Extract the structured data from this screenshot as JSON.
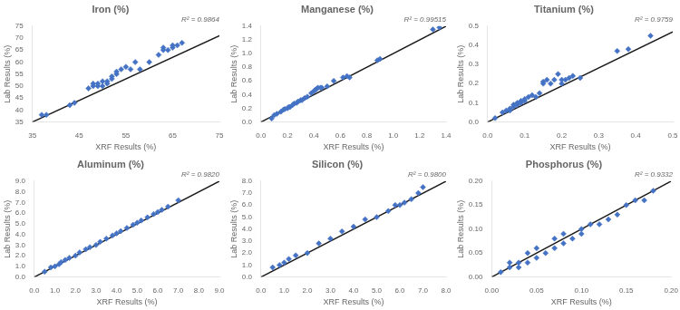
{
  "chart_data": [
    {
      "type": "scatter",
      "title": "Iron (%)",
      "annotation": "R² = 0.9864",
      "x_label": "XRF Results (%)",
      "y_label": "Lab Results (%)",
      "xlim": [
        35,
        75
      ],
      "ylim": [
        35,
        75
      ],
      "xticks": [
        35,
        45,
        55,
        65,
        75
      ],
      "yticks": [
        35,
        40,
        45,
        50,
        55,
        60,
        65,
        70,
        75
      ],
      "grid": false,
      "legend": false,
      "series": [
        {
          "type": "scatter",
          "color": "#4472C4",
          "marker": "diamond",
          "x": [
            37,
            38,
            43,
            44,
            47,
            48,
            48,
            49,
            49,
            50,
            50,
            51,
            51,
            52,
            52,
            53,
            53,
            54,
            55,
            56,
            57,
            58,
            60,
            62,
            63,
            63,
            64,
            65,
            65,
            66,
            67
          ],
          "values": [
            38,
            38,
            42,
            43,
            49,
            50,
            51,
            50,
            51,
            52,
            50,
            52,
            51,
            53,
            54,
            55,
            56,
            57,
            58,
            57,
            60,
            57,
            60,
            63,
            65,
            66,
            65,
            66,
            67,
            67,
            68
          ]
        },
        {
          "type": "line",
          "color": "#1a1a1a",
          "line_style": "solid",
          "x": [
            35,
            75
          ],
          "values": [
            35,
            71
          ]
        }
      ]
    },
    {
      "type": "scatter",
      "title": "Manganese (%)",
      "annotation": "R² = 0.99515",
      "x_label": "XRF Results (%)",
      "y_label": "Lab Results (%)",
      "xlim": [
        0.0,
        1.4
      ],
      "ylim": [
        0.0,
        1.4
      ],
      "xticks": [
        {
          "value": 0,
          "label": "0.0"
        },
        0.2,
        0.4,
        0.6,
        0.8,
        {
          "value": 1,
          "label": "1.0"
        },
        1.2,
        1.4
      ],
      "yticks": [
        {
          "value": 0,
          "label": "0.0"
        },
        0.2,
        0.4,
        0.6,
        0.8,
        {
          "value": 1,
          "label": "1.0"
        },
        1.2,
        1.4
      ],
      "grid": false,
      "legend": false,
      "series": [
        {
          "type": "scatter",
          "color": "#4472C4",
          "marker": "diamond",
          "x": [
            0.08,
            0.1,
            0.12,
            0.15,
            0.17,
            0.18,
            0.2,
            0.21,
            0.22,
            0.24,
            0.25,
            0.27,
            0.28,
            0.3,
            0.31,
            0.33,
            0.35,
            0.38,
            0.4,
            0.41,
            0.42,
            0.43,
            0.45,
            0.46,
            0.5,
            0.55,
            0.62,
            0.65,
            0.67,
            0.88,
            0.9,
            1.3,
            1.35
          ],
          "values": [
            0.05,
            0.1,
            0.12,
            0.15,
            0.18,
            0.19,
            0.2,
            0.22,
            0.22,
            0.25,
            0.27,
            0.28,
            0.3,
            0.32,
            0.32,
            0.35,
            0.37,
            0.42,
            0.45,
            0.47,
            0.48,
            0.5,
            0.5,
            0.5,
            0.52,
            0.6,
            0.65,
            0.67,
            0.65,
            0.9,
            0.92,
            1.35,
            1.38
          ]
        },
        {
          "type": "line",
          "color": "#1a1a1a",
          "line_style": "solid",
          "x": [
            0.0,
            1.4
          ],
          "values": [
            0.0,
            1.4
          ]
        }
      ]
    },
    {
      "type": "scatter",
      "title": "Titanium (%)",
      "annotation": "R² = 0.9759",
      "x_label": "XRF Results (%)",
      "y_label": "Lab Results (%)",
      "xlim": [
        0.0,
        0.5
      ],
      "ylim": [
        0.0,
        0.5
      ],
      "xticks": [
        {
          "value": 0,
          "label": "0.0"
        },
        0.1,
        0.2,
        0.3,
        0.4,
        0.5
      ],
      "yticks": [
        {
          "value": 0,
          "label": "0.0"
        },
        0.1,
        0.2,
        0.3,
        0.4,
        0.5
      ],
      "grid": false,
      "legend": false,
      "series": [
        {
          "type": "scatter",
          "color": "#4472C4",
          "marker": "diamond",
          "x": [
            0.02,
            0.04,
            0.05,
            0.06,
            0.06,
            0.07,
            0.07,
            0.08,
            0.08,
            0.09,
            0.09,
            0.1,
            0.1,
            0.11,
            0.12,
            0.13,
            0.14,
            0.15,
            0.15,
            0.16,
            0.17,
            0.18,
            0.19,
            0.2,
            0.2,
            0.21,
            0.22,
            0.23,
            0.25,
            0.35,
            0.38,
            0.44
          ],
          "values": [
            0.02,
            0.05,
            0.06,
            0.06,
            0.07,
            0.08,
            0.09,
            0.09,
            0.1,
            0.1,
            0.11,
            0.11,
            0.12,
            0.13,
            0.14,
            0.13,
            0.15,
            0.2,
            0.21,
            0.22,
            0.2,
            0.22,
            0.25,
            0.2,
            0.22,
            0.22,
            0.23,
            0.24,
            0.23,
            0.37,
            0.38,
            0.45
          ]
        },
        {
          "type": "line",
          "color": "#1a1a1a",
          "line_style": "solid",
          "x": [
            0.0,
            0.5
          ],
          "values": [
            0.0,
            0.47
          ]
        }
      ]
    },
    {
      "type": "scatter",
      "title": "Aluminum (%)",
      "annotation": "R² = 0.9820",
      "x_label": "XRF Results (%)",
      "y_label": "Lab Results (%)",
      "xlim": [
        0.0,
        9.0
      ],
      "ylim": [
        0.0,
        9.0
      ],
      "xticks": [
        {
          "value": 0,
          "label": "0.0"
        },
        {
          "value": 1,
          "label": "1.0"
        },
        {
          "value": 2,
          "label": "2.0"
        },
        {
          "value": 3,
          "label": "3.0"
        },
        {
          "value": 4,
          "label": "4.0"
        },
        {
          "value": 5,
          "label": "5.0"
        },
        {
          "value": 6,
          "label": "6.0"
        },
        {
          "value": 7,
          "label": "7.0"
        },
        {
          "value": 8,
          "label": "8.0"
        },
        {
          "value": 9,
          "label": "9.0"
        }
      ],
      "yticks": [
        {
          "value": 0,
          "label": "0.0"
        },
        {
          "value": 1,
          "label": "1.0"
        },
        {
          "value": 2,
          "label": "2.0"
        },
        {
          "value": 3,
          "label": "3.0"
        },
        {
          "value": 4,
          "label": "4.0"
        },
        {
          "value": 5,
          "label": "5.0"
        },
        {
          "value": 6,
          "label": "6.0"
        },
        {
          "value": 7,
          "label": "7.0"
        },
        {
          "value": 8,
          "label": "8.0"
        },
        {
          "value": 9,
          "label": "9.0"
        }
      ],
      "grid": false,
      "legend": false,
      "series": [
        {
          "type": "scatter",
          "color": "#4472C4",
          "marker": "diamond",
          "x": [
            0.5,
            0.8,
            1.0,
            1.2,
            1.3,
            1.5,
            1.7,
            2.0,
            2.2,
            2.5,
            2.7,
            3.0,
            3.2,
            3.5,
            3.8,
            4.0,
            4.2,
            4.5,
            4.8,
            5.0,
            5.2,
            5.5,
            5.8,
            6.0,
            6.2,
            6.5,
            7.0
          ],
          "values": [
            0.5,
            0.9,
            1.0,
            1.2,
            1.4,
            1.6,
            1.8,
            2.0,
            2.3,
            2.6,
            2.8,
            3.0,
            3.3,
            3.6,
            3.9,
            4.1,
            4.3,
            4.6,
            4.9,
            5.1,
            5.3,
            5.6,
            5.9,
            6.1,
            6.3,
            6.6,
            7.2
          ]
        },
        {
          "type": "line",
          "color": "#1a1a1a",
          "line_style": "solid",
          "x": [
            0.0,
            9.0
          ],
          "values": [
            0.0,
            9.0
          ]
        }
      ]
    },
    {
      "type": "scatter",
      "title": "Silicon (%)",
      "annotation": "R² = 0.9800",
      "x_label": "XRF Results (%)",
      "y_label": "Lab Results (%)",
      "xlim": [
        0.0,
        8.0
      ],
      "ylim": [
        0.0,
        8.0
      ],
      "xticks": [
        {
          "value": 0,
          "label": "0.0"
        },
        {
          "value": 1,
          "label": "1.0"
        },
        {
          "value": 2,
          "label": "2.0"
        },
        {
          "value": 3,
          "label": "3.0"
        },
        {
          "value": 4,
          "label": "4.0"
        },
        {
          "value": 5,
          "label": "5.0"
        },
        {
          "value": 6,
          "label": "6.0"
        },
        {
          "value": 7,
          "label": "7.0"
        },
        {
          "value": 8,
          "label": "8.0"
        }
      ],
      "yticks": [
        {
          "value": 0,
          "label": "0.0"
        },
        {
          "value": 1,
          "label": "1.0"
        },
        {
          "value": 2,
          "label": "2.0"
        },
        {
          "value": 3,
          "label": "3.0"
        },
        {
          "value": 4,
          "label": "4.0"
        },
        {
          "value": 5,
          "label": "5.0"
        },
        {
          "value": 6,
          "label": "6.0"
        },
        {
          "value": 7,
          "label": "7.0"
        },
        {
          "value": 8,
          "label": "8.0"
        }
      ],
      "grid": false,
      "legend": false,
      "series": [
        {
          "type": "scatter",
          "color": "#4472C4",
          "marker": "diamond",
          "x": [
            0.5,
            0.8,
            1.0,
            1.2,
            1.5,
            2.0,
            2.5,
            3.0,
            3.5,
            4.0,
            4.5,
            5.0,
            5.5,
            5.8,
            6.0,
            6.2,
            6.5,
            6.8,
            7.0
          ],
          "values": [
            0.8,
            1.0,
            1.2,
            1.5,
            1.8,
            2.0,
            2.8,
            3.2,
            3.8,
            4.2,
            4.8,
            5.0,
            5.5,
            6.0,
            6.0,
            6.2,
            6.5,
            7.0,
            7.5
          ]
        },
        {
          "type": "line",
          "color": "#1a1a1a",
          "line_style": "solid",
          "x": [
            0.0,
            8.0
          ],
          "values": [
            0.0,
            8.0
          ]
        }
      ]
    },
    {
      "type": "scatter",
      "title": "Phosphorus (%)",
      "annotation": "R² = 0.9332",
      "x_label": "XRF Results (%)",
      "y_label": "Lab Results (%)",
      "xlim": [
        0.0,
        0.2
      ],
      "ylim": [
        0.0,
        0.2
      ],
      "xticks": [
        {
          "value": 0,
          "label": "0.00"
        },
        0.05,
        {
          "value": 0.1,
          "label": "0.10"
        },
        0.15,
        {
          "value": 0.2,
          "label": "0.20"
        }
      ],
      "yticks": [
        {
          "value": 0,
          "label": "0.00"
        },
        0.05,
        {
          "value": 0.1,
          "label": "0.10"
        },
        0.15,
        {
          "value": 0.2,
          "label": "0.20"
        }
      ],
      "grid": false,
      "legend": false,
      "series": [
        {
          "type": "scatter",
          "color": "#4472C4",
          "marker": "diamond",
          "x": [
            0.01,
            0.02,
            0.02,
            0.03,
            0.03,
            0.04,
            0.04,
            0.05,
            0.05,
            0.06,
            0.07,
            0.07,
            0.08,
            0.08,
            0.09,
            0.1,
            0.1,
            0.11,
            0.12,
            0.13,
            0.14,
            0.15,
            0.16,
            0.17,
            0.18
          ],
          "values": [
            0.01,
            0.02,
            0.03,
            0.02,
            0.03,
            0.03,
            0.05,
            0.04,
            0.06,
            0.05,
            0.06,
            0.08,
            0.07,
            0.09,
            0.08,
            0.09,
            0.1,
            0.11,
            0.11,
            0.12,
            0.13,
            0.15,
            0.16,
            0.16,
            0.18
          ]
        },
        {
          "type": "line",
          "color": "#1a1a1a",
          "line_style": "solid",
          "x": [
            0.0,
            0.2
          ],
          "values": [
            0.0,
            0.2
          ]
        }
      ]
    }
  ]
}
